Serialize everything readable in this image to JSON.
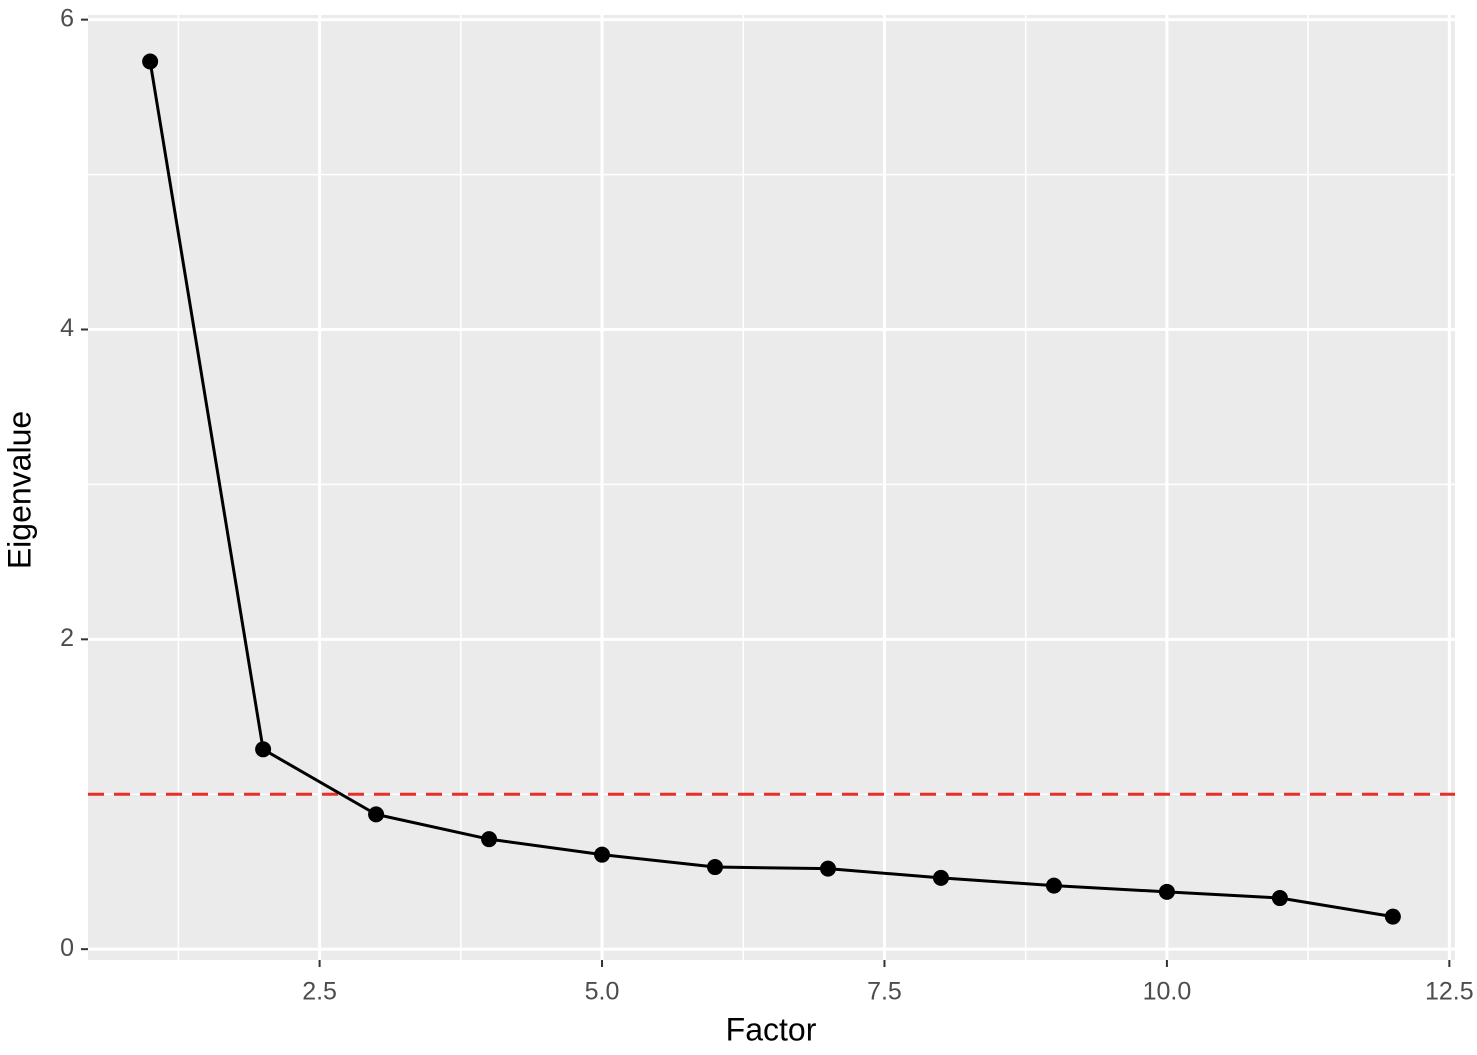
{
  "chart_data": {
    "type": "line",
    "x_label": "Factor",
    "y_label": "Eigenvalue",
    "x": [
      1,
      2,
      3,
      4,
      5,
      6,
      7,
      8,
      9,
      10,
      11,
      12
    ],
    "series": [
      {
        "color": "#000000",
        "values": [
          5.73,
          1.29,
          0.87,
          0.71,
          0.61,
          0.53,
          0.52,
          0.46,
          0.41,
          0.37,
          0.33,
          0.21
        ]
      }
    ],
    "xlim": [
      0.45,
      12.55
    ],
    "ylim": [
      -0.07,
      6.03
    ],
    "xticks": [
      2.5,
      {
        "value": 5,
        "label": "5.0"
      },
      {
        "value": 7.5,
        "label": "7.5"
      },
      {
        "value": 10,
        "label": "10.0"
      },
      12.5
    ],
    "yticks": [
      0,
      2,
      4,
      6
    ],
    "reference_line": {
      "y": 1,
      "color": "#e8302a",
      "dashed": true
    },
    "grid": true,
    "markers": true
  }
}
